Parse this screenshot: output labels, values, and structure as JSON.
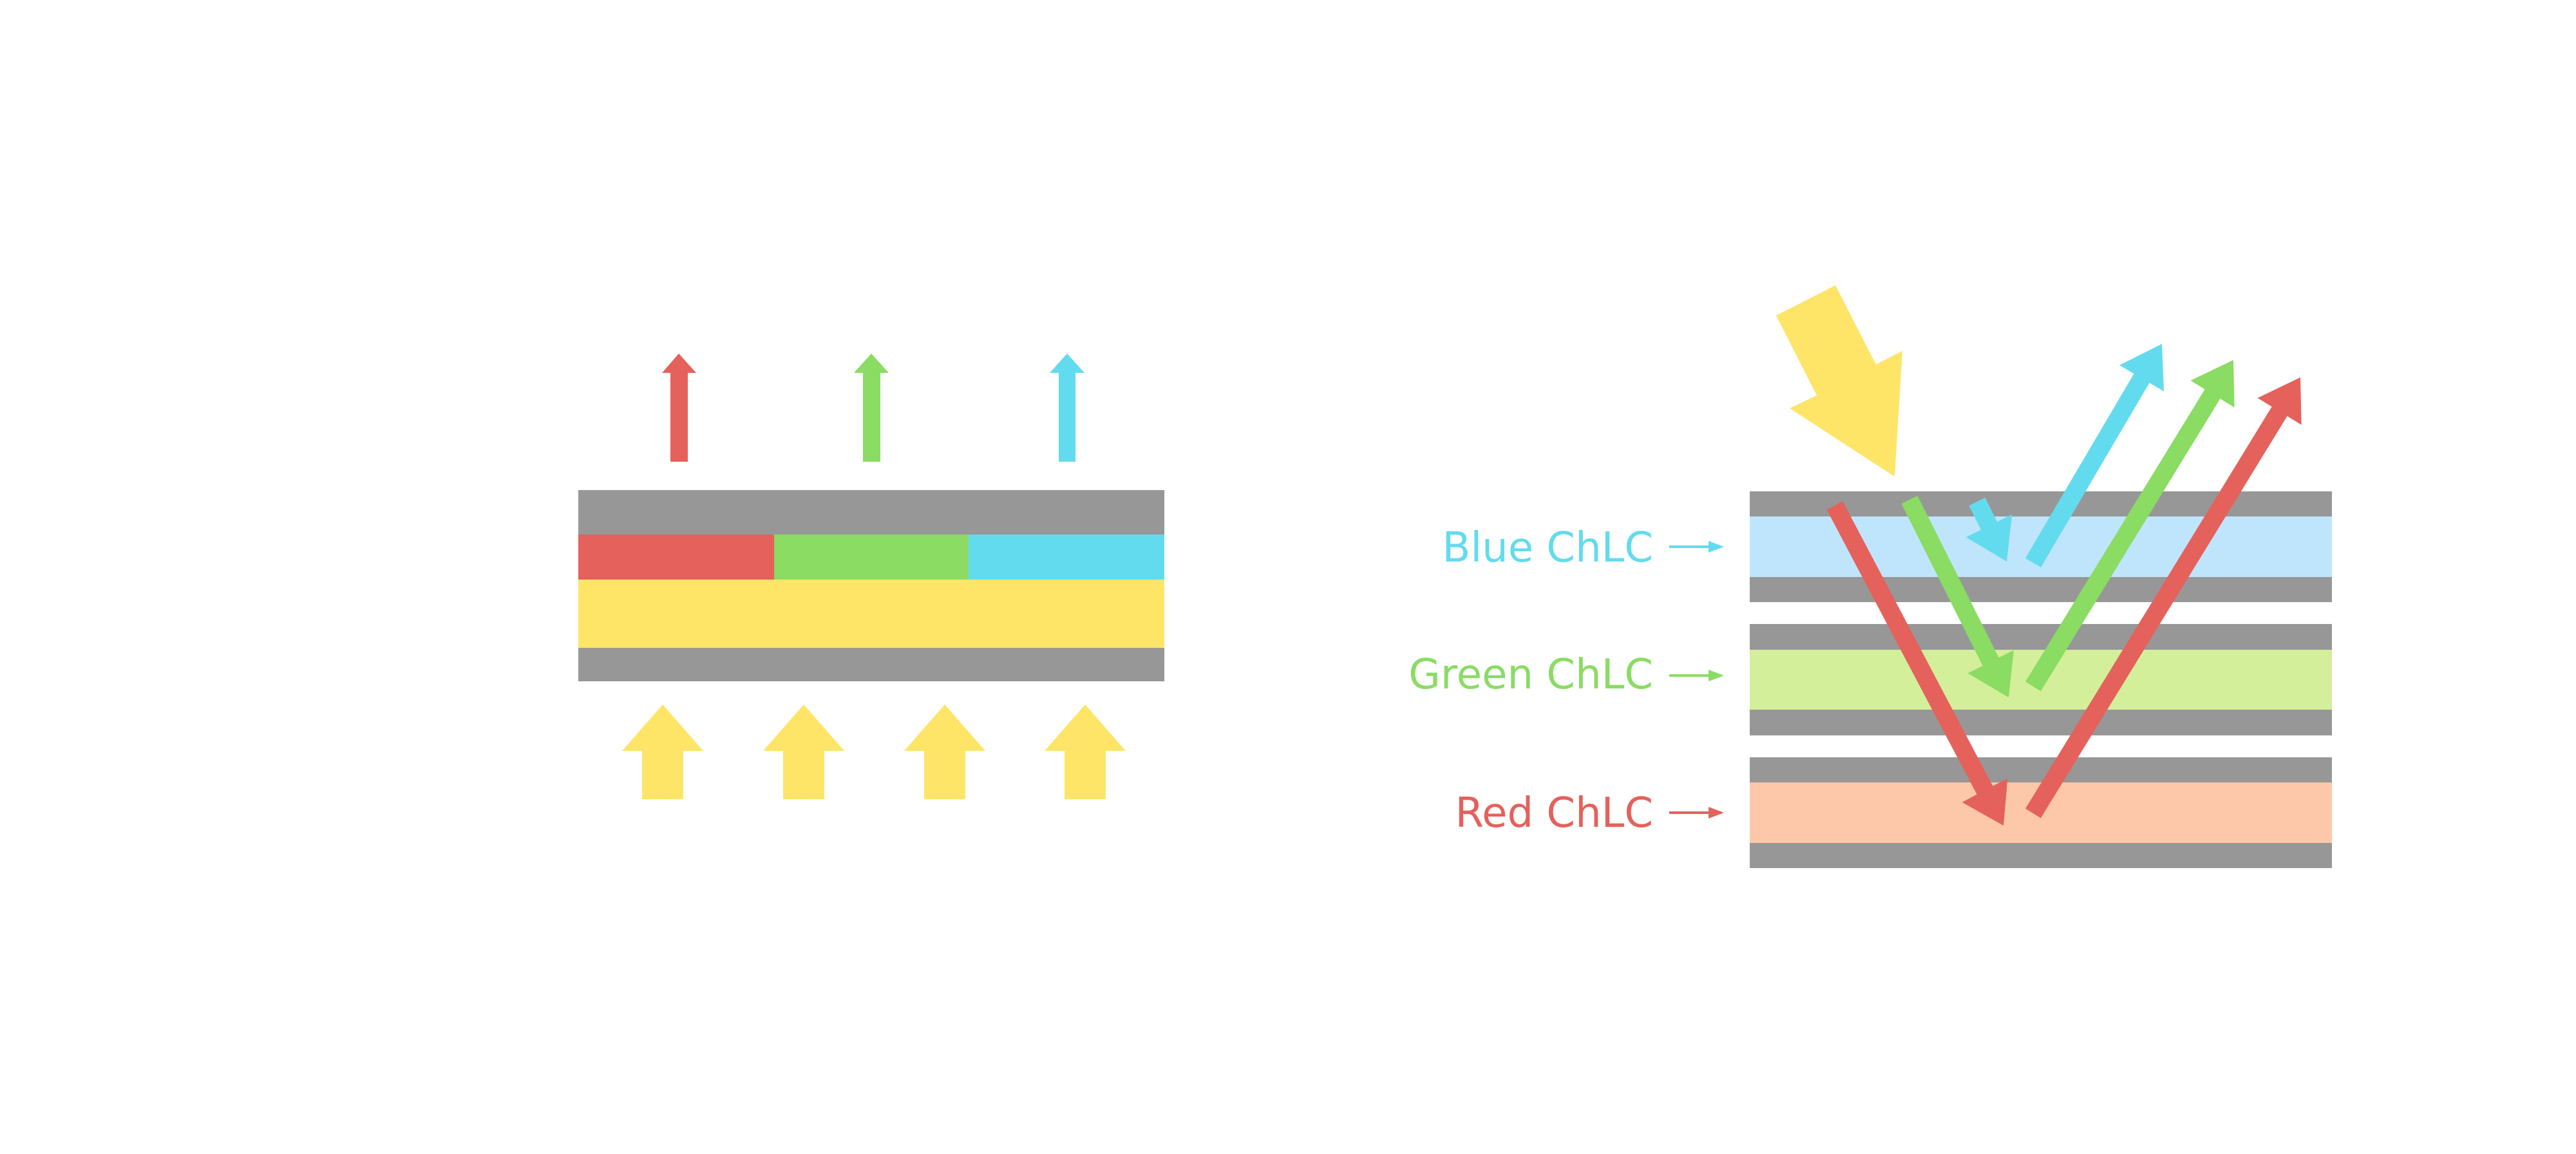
{
  "colors": {
    "substrate": "#979797",
    "red": "#E5615C",
    "green": "#8ADC63",
    "blue": "#63DBEE",
    "light": "#FEE567",
    "blue_layer": "#BFE5FC",
    "green_layer": "#D3EF9A",
    "red_layer": "#FDC8A9"
  },
  "right_diagram": {
    "labels": {
      "blue": "Blue ChLC",
      "green": "Green ChLC",
      "red": "Red ChLC"
    }
  }
}
